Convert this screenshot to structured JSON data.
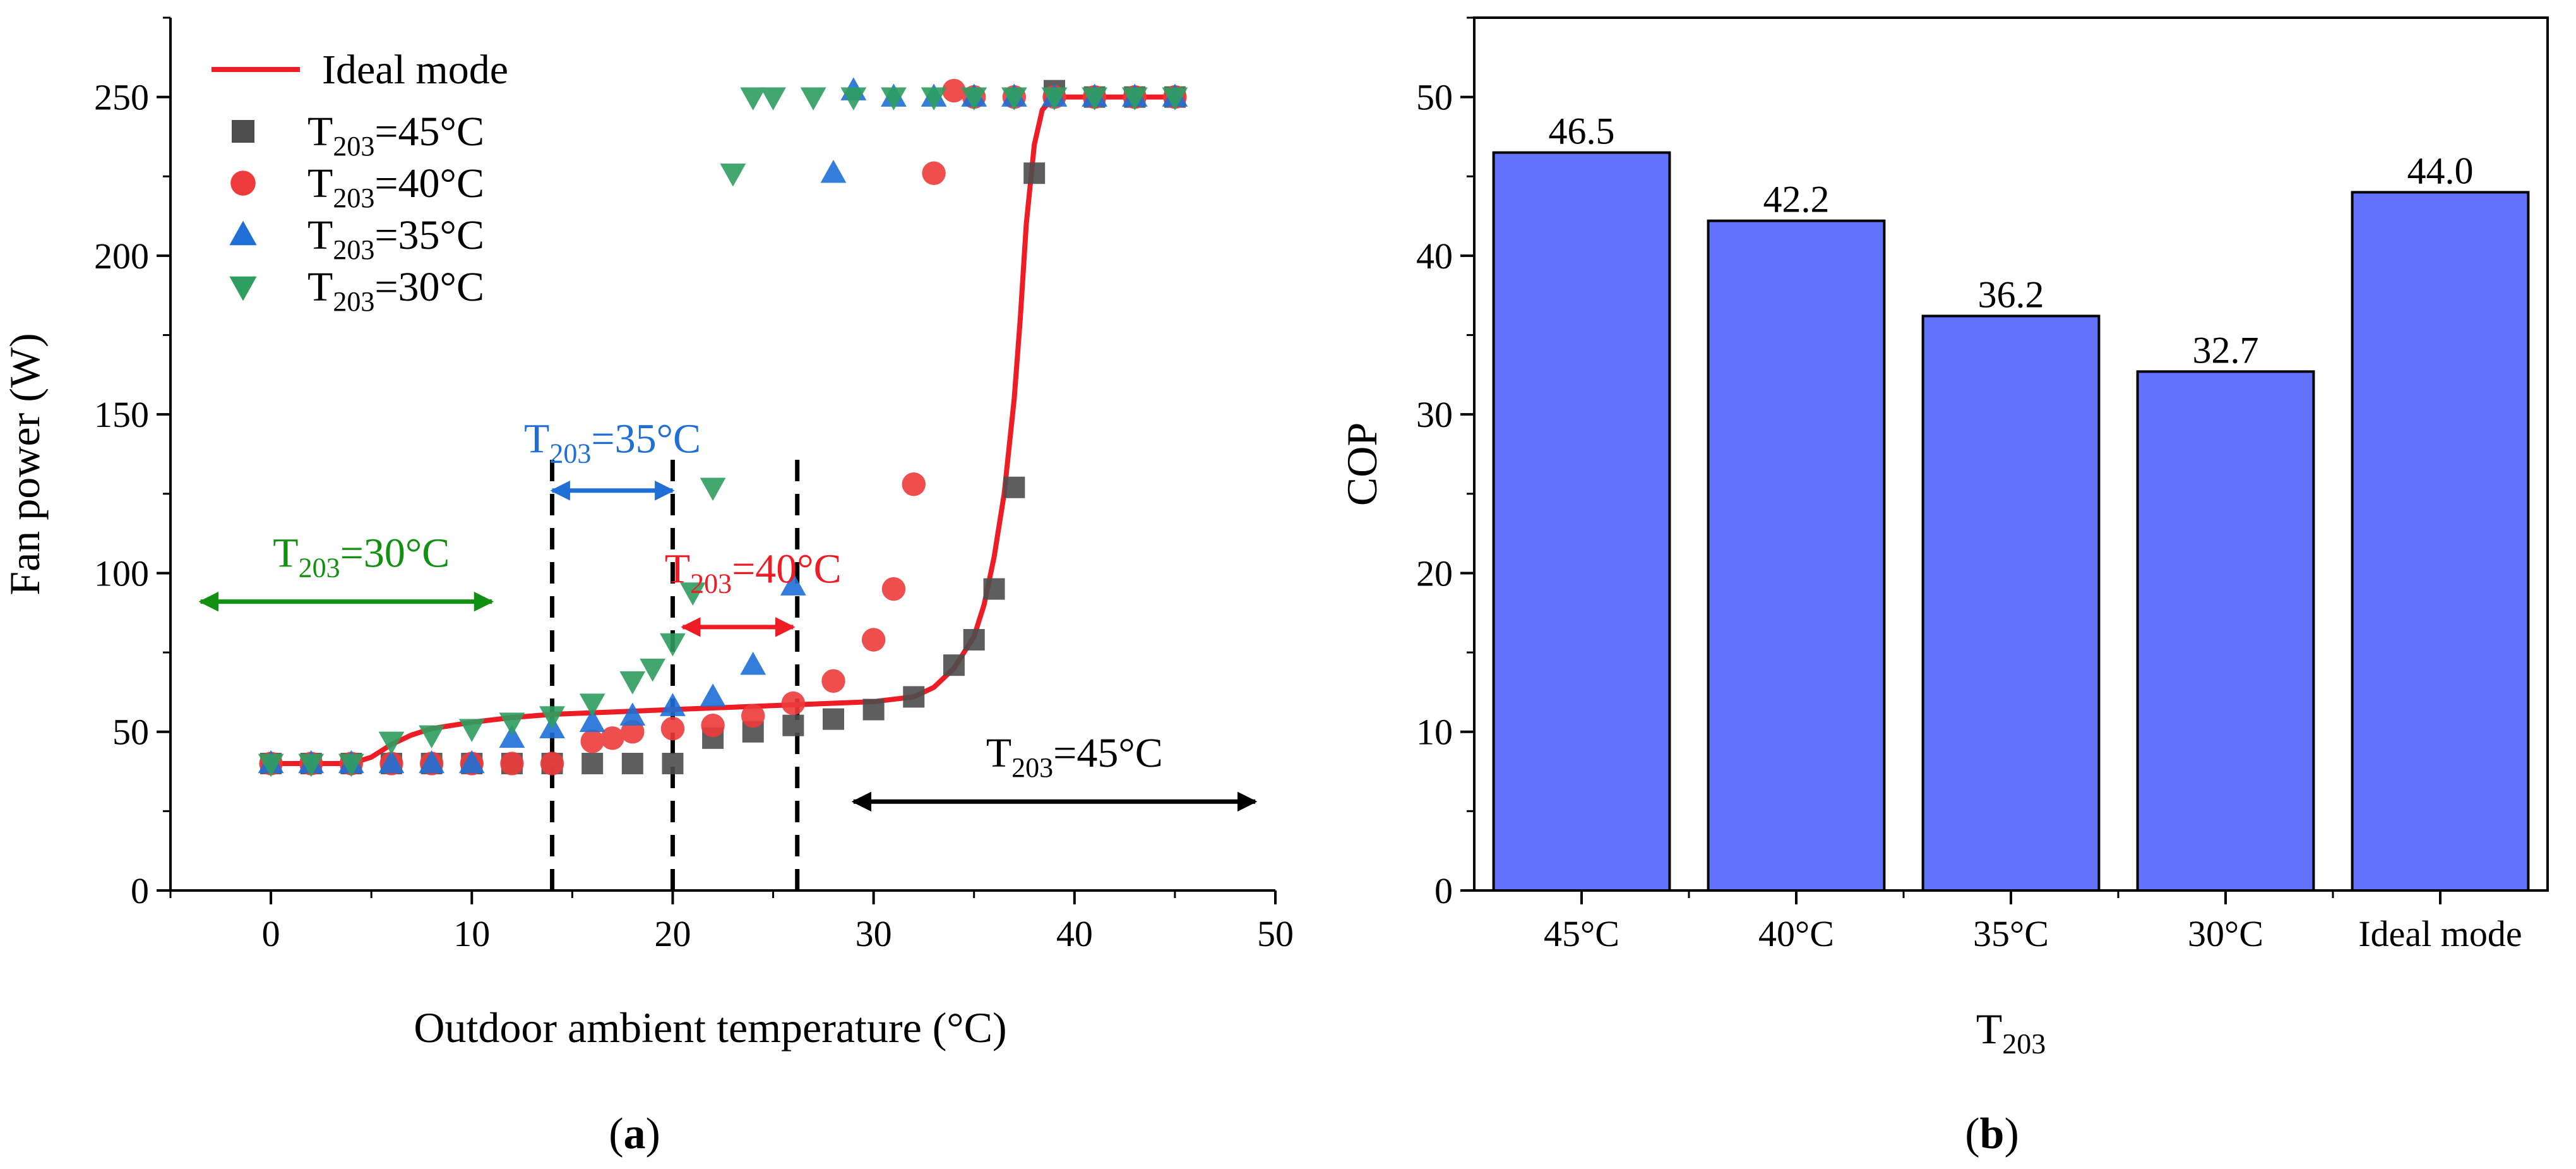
{
  "chart_data": [
    {
      "id": "a",
      "type": "scatter",
      "panel_label": "a",
      "xlabel": "Outdoor ambient temperature (°C)",
      "ylabel": "Fan power (W)",
      "xlim": [
        -5,
        50
      ],
      "ylim": [
        0,
        275
      ],
      "xticks": [
        0,
        10,
        20,
        30,
        40,
        50
      ],
      "yticks": [
        0,
        50,
        100,
        150,
        200,
        250
      ],
      "legend_position": "top-left",
      "line_series": {
        "name": "Ideal mode",
        "color": "#ee1c25",
        "x": [
          0,
          2,
          4,
          5,
          6,
          7,
          8,
          10,
          12,
          14,
          16,
          18,
          20,
          22,
          24,
          26,
          28,
          30,
          32,
          33,
          34,
          35,
          35.5,
          36,
          36.5,
          37,
          37.3,
          37.6,
          38,
          38.4,
          39,
          40,
          45
        ],
        "y": [
          40,
          40,
          40,
          42,
          46,
          49,
          51,
          53,
          54.5,
          55.5,
          56,
          56.5,
          57,
          57.5,
          58,
          58.5,
          59,
          59.5,
          61,
          64,
          70,
          80,
          90,
          105,
          125,
          155,
          180,
          210,
          235,
          246,
          250,
          250,
          250
        ]
      },
      "series": [
        {
          "name": "T203=45°C",
          "label_main": "T",
          "label_sub": "203",
          "label_rest": "=45°C",
          "marker": "square",
          "color": "#4d4d4d",
          "x": [
            0,
            2,
            4,
            6,
            8,
            10,
            12,
            14,
            16,
            18,
            20,
            22,
            24,
            26,
            28,
            30,
            32,
            34,
            35,
            36,
            37,
            38,
            39,
            41,
            43,
            45
          ],
          "y": [
            40,
            40,
            40,
            40,
            40,
            40,
            40,
            40,
            40,
            40,
            40,
            48,
            50,
            52,
            54,
            57,
            61,
            71,
            79,
            95,
            127,
            226,
            252,
            250,
            250,
            250
          ]
        },
        {
          "name": "T203=40°C",
          "label_main": "T",
          "label_sub": "203",
          "label_rest": "=40°C",
          "marker": "circle",
          "color": "#ee3b3b",
          "x": [
            0,
            2,
            4,
            6,
            8,
            10,
            12,
            14,
            16,
            17,
            18,
            20,
            22,
            24,
            26,
            28,
            30,
            31,
            32,
            33,
            34,
            35,
            37,
            39,
            41,
            43,
            45
          ],
          "y": [
            40,
            40,
            40,
            40,
            40,
            40,
            40,
            40,
            47,
            48,
            50,
            51,
            52,
            55,
            59,
            66,
            79,
            95,
            128,
            226,
            252,
            250,
            250,
            250,
            250,
            250,
            250
          ]
        },
        {
          "name": "T203=35°C",
          "label_main": "T",
          "label_sub": "203",
          "label_rest": "=35°C",
          "marker": "triangle-up",
          "color": "#1f6fd6",
          "x": [
            0,
            2,
            4,
            6,
            8,
            10,
            12,
            14,
            16,
            18,
            20,
            22,
            24,
            26,
            28,
            29,
            31,
            33,
            35,
            37,
            39,
            41,
            43,
            45
          ],
          "y": [
            40,
            40,
            40,
            40,
            40,
            40,
            48,
            51,
            53,
            55,
            58,
            61,
            71,
            96,
            226,
            252,
            250,
            250,
            250,
            250,
            250,
            250,
            250,
            250
          ]
        },
        {
          "name": "T203=30°C",
          "label_main": "T",
          "label_sub": "203",
          "label_rest": "=30°C",
          "marker": "triangle-down",
          "color": "#2e9e60",
          "x": [
            0,
            2,
            4,
            6,
            8,
            10,
            12,
            14,
            16,
            18,
            19,
            20,
            21,
            22,
            23,
            24,
            25,
            27,
            29,
            31,
            33,
            35,
            37,
            39,
            41,
            43,
            45
          ],
          "y": [
            40,
            40,
            40,
            47,
            49,
            51,
            53,
            55,
            59,
            66,
            70,
            78,
            94,
            127,
            226,
            250,
            250,
            250,
            250,
            250,
            250,
            250,
            250,
            250,
            250,
            250,
            250
          ]
        }
      ],
      "vlines": [
        14,
        20,
        26.2
      ],
      "annotations": [
        {
          "main": "T",
          "sub": "203",
          "rest": "=35°C",
          "color": "#1f6fd6",
          "arrow_x": [
            14,
            20
          ],
          "arrow_y": 126
        },
        {
          "main": "T",
          "sub": "203",
          "rest": "=30°C",
          "color": "#119011",
          "arrow_x": [
            -3.5,
            11
          ],
          "arrow_y": 91
        },
        {
          "main": "T",
          "sub": "203",
          "rest": "=40°C",
          "color": "#ee1c25",
          "arrow_x": [
            20.5,
            26
          ],
          "arrow_y": 83
        },
        {
          "main": "T",
          "sub": "203",
          "rest": "=45°C",
          "color": "#000000",
          "arrow_x": [
            29,
            49
          ],
          "arrow_y": 28
        }
      ]
    },
    {
      "id": "b",
      "type": "bar",
      "panel_label": "b",
      "categories": [
        "45°C",
        "40°C",
        "35°C",
        "30°C",
        "Ideal mode"
      ],
      "values": [
        46.5,
        42.2,
        36.2,
        32.7,
        44.0
      ],
      "value_labels": [
        "46.5",
        "42.2",
        "36.2",
        "32.7",
        "44.0"
      ],
      "ylabel": "COP",
      "xlabel_main": "T",
      "xlabel_sub": "203",
      "ylim": [
        0,
        55
      ],
      "yticks": [
        0,
        10,
        20,
        30,
        40,
        50
      ],
      "bar_color": "#6272fb"
    }
  ]
}
